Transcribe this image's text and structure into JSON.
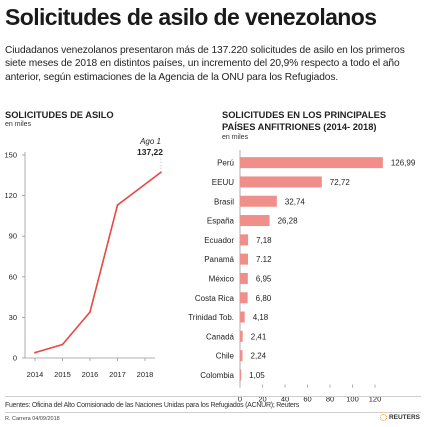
{
  "title": "Solicitudes de asilo de venezolanos",
  "intro": "Ciudadanos  venezolanos presentaron más de 137.220 solicitudes de asilo en los primeros siete meses de 2018 en distintos países, un incremento del 20,9% respecto a todo el año anterior, según estimaciones de la Agencia de la ONU para los Refugiados.",
  "left_chart": {
    "heading": "SOLICITUDES DE ASILO",
    "unit": "en miles",
    "annotation_label": "Ago 1",
    "annotation_value": "137,22"
  },
  "right_chart": {
    "heading_line1": "SOLICITUDES EN LOS PRINCIPALES",
    "heading_line2": "PAÍSES ANFITRIONES (2014- 2018)",
    "unit": "en miles"
  },
  "source": "Fuentes: Oficina del Alto Comisionado de las Naciones Unidas para los Refugiados (ACNUR); Reuters",
  "credit": "R. Carrera 04/09/2018",
  "logo_text": "REUTERS",
  "colors": {
    "line": "#e8483f",
    "bar": "#f08e8a",
    "axis": "#999999",
    "text": "#222222"
  },
  "chart_data": [
    {
      "type": "line",
      "x": [
        "2014",
        "2015",
        "2016",
        "2017",
        "2018"
      ],
      "x_numeric": [
        2014,
        2015,
        2016,
        2017,
        2018.58
      ],
      "values": [
        4,
        10,
        34,
        113,
        137.22
      ],
      "ylim": [
        0,
        150
      ],
      "yticks": [
        0,
        30,
        60,
        90,
        120,
        150
      ],
      "ytick_labels": [
        "0",
        "30",
        "60",
        "90",
        "120",
        "150"
      ],
      "xlabel": "",
      "ylabel": "en miles",
      "grid": false
    },
    {
      "type": "bar",
      "orientation": "horizontal",
      "categories": [
        "Perú",
        "EEUU",
        "Brasil",
        "España",
        "Ecuador",
        "Panamá",
        "México",
        "Costa Rica",
        "Trinidad Tob.",
        "Canadá",
        "Chile",
        "Colombia"
      ],
      "values": [
        126.99,
        72.72,
        32.74,
        26.28,
        7.18,
        7.12,
        6.95,
        6.8,
        4.18,
        2.41,
        2.24,
        1.05
      ],
      "value_labels": [
        "126,99",
        "72,72",
        "32,74",
        "26,28",
        "7,18",
        "7.12",
        "6,95",
        "6,80",
        "4,18",
        "2,41",
        "2,24",
        "1,05"
      ],
      "xlim": [
        0,
        130
      ],
      "xticks": [
        0,
        20,
        40,
        60,
        80,
        100,
        120
      ],
      "xtick_labels": [
        "0",
        "20",
        "40",
        "60",
        "80",
        "100",
        "120"
      ],
      "grid": false
    }
  ]
}
